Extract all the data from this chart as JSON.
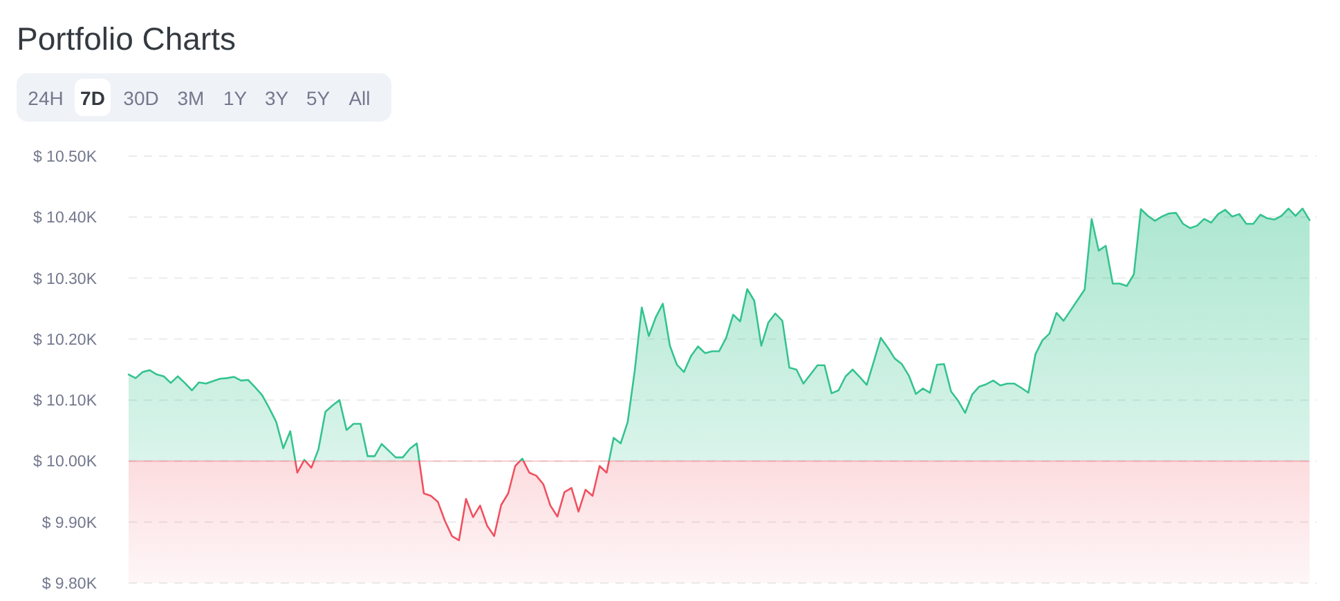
{
  "chart_data": {
    "type": "area",
    "title": "Portfolio Charts",
    "annotations": [
      "24H",
      "7D",
      "30D",
      "3M",
      "1Y",
      "3Y",
      "5Y",
      "All"
    ],
    "ylim": [
      9800,
      10500
    ],
    "yticks": [
      {
        "value": 9800,
        "label": "$ 9.80K"
      },
      {
        "value": 9900,
        "label": "$ 9.90K"
      },
      {
        "value": 10000,
        "label": "$ 10.00K"
      },
      {
        "value": 10100,
        "label": "$ 10.10K"
      },
      {
        "value": 10200,
        "label": "$ 10.20K"
      },
      {
        "value": 10300,
        "label": "$ 10.30K"
      },
      {
        "value": 10400,
        "label": "$ 10.40K"
      },
      {
        "value": 10500,
        "label": "$ 10.50K"
      }
    ],
    "grid": "y",
    "marker": "none",
    "line_style": "solid",
    "ref_lines": [
      {
        "axis": "y",
        "value": 10000,
        "color": "#f0505f"
      }
    ],
    "categories": [
      null,
      null,
      null,
      null,
      null,
      null,
      null,
      null,
      null,
      null,
      null,
      null,
      null,
      null,
      null,
      null,
      null,
      null,
      null,
      null,
      null,
      null,
      null,
      null,
      null,
      null,
      null,
      null,
      null,
      null,
      null,
      null,
      null,
      null,
      null,
      null,
      null,
      null,
      null,
      null,
      null,
      null,
      null,
      null,
      null,
      null,
      null,
      null,
      null,
      null,
      null,
      null,
      null,
      null,
      null,
      null,
      null,
      null,
      null,
      null,
      null,
      null,
      null,
      null,
      null,
      null,
      null,
      null,
      null,
      null,
      null,
      null,
      null,
      null,
      null,
      null,
      null,
      null,
      null,
      null,
      null,
      null,
      null,
      null,
      null,
      null,
      null,
      null,
      null,
      null,
      null,
      null,
      null,
      null,
      null,
      null,
      null,
      null,
      null,
      null,
      null,
      null,
      null,
      null,
      null,
      null,
      null,
      null,
      null,
      null,
      null,
      null,
      null,
      null,
      null,
      null,
      null,
      null,
      null,
      null,
      null,
      null,
      null,
      null,
      null,
      null,
      null,
      null,
      null,
      null,
      null,
      null,
      null,
      null,
      null,
      null,
      null,
      null,
      null,
      null,
      null,
      null,
      null,
      null,
      null,
      null,
      null,
      null,
      null,
      null,
      null,
      null,
      null,
      null,
      null,
      null,
      null,
      null,
      null,
      null,
      null,
      null,
      null,
      null,
      null,
      null,
      null,
      null,
      null
    ],
    "series": [
      {
        "color": "#34c38f",
        "values": [
          10142,
          10136,
          10146,
          10149,
          10142,
          10139,
          10128,
          10139,
          10128,
          10116,
          10129,
          10127,
          10131,
          10135,
          10136,
          10138,
          10132,
          10133,
          10121,
          10108,
          10087,
          10064,
          10021,
          10049,
          9981,
          10002,
          9989,
          10019,
          10081,
          10091,
          10100,
          10051,
          10061,
          10061,
          10008,
          10008,
          10028,
          10017,
          10006,
          10006,
          10020,
          10029,
          9947,
          9943,
          9933,
          9902,
          9877,
          9870,
          9938,
          9908,
          9927,
          9894,
          9877,
          9928,
          9947,
          9992,
          10004,
          9981,
          9976,
          9962,
          9927,
          9909,
          9949,
          9956,
          9917,
          9953,
          9943,
          9992,
          9981,
          10038,
          10029,
          10064,
          10148,
          10252,
          10205,
          10236,
          10258,
          10189,
          10158,
          10146,
          10172,
          10188,
          10177,
          10180,
          10180,
          10202,
          10240,
          10229,
          10282,
          10263,
          10189,
          10227,
          10242,
          10230,
          10153,
          10150,
          10127,
          10142,
          10157,
          10157,
          10111,
          10116,
          10139,
          10150,
          10138,
          10125,
          10163,
          10202,
          10186,
          10168,
          10159,
          10140,
          10110,
          10119,
          10112,
          10158,
          10159,
          10114,
          10099,
          10079,
          10109,
          10122,
          10126,
          10132,
          10124,
          10127,
          10127,
          10120,
          10112,
          10175,
          10198,
          10209,
          10243,
          10230,
          10247,
          10264,
          10281,
          10397,
          10345,
          10353,
          10291,
          10291,
          10287,
          10306,
          10413,
          10402,
          10394,
          10401,
          10406,
          10407,
          10389,
          10382,
          10386,
          10397,
          10391,
          10405,
          10412,
          10401,
          10405,
          10389,
          10389,
          10404,
          10398,
          10396,
          10402,
          10414,
          10402,
          10414,
          10395
        ]
      }
    ]
  }
}
